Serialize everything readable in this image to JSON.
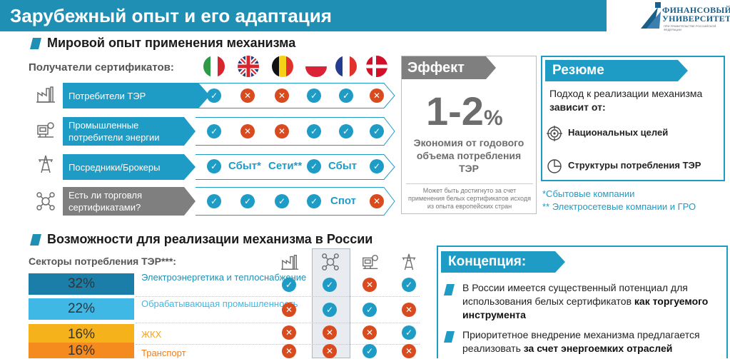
{
  "header": {
    "title": "Зарубежный опыт и его адаптация"
  },
  "logo": {
    "line1": "ФИНАНСОВЫЙ",
    "line2": "УНИВЕРСИТЕТ",
    "sub": "ПРИ ПРАВИТЕЛЬСТВЕ РОССИЙСКОЙ ФЕДЕРАЦИИ"
  },
  "world": {
    "heading": "Мировой опыт применения механизма",
    "recipients_label": "Получатели сертификатов:",
    "countries": [
      "italy-flag",
      "uk-flag",
      "belgium-flag",
      "poland-flag",
      "france-flag",
      "denmark-flag"
    ],
    "rows": [
      {
        "label": "Потребители ТЭР",
        "icon": "factory-icon",
        "cells": [
          "ok",
          "no",
          "no",
          "ok",
          "ok",
          "no"
        ]
      },
      {
        "label": "Промышленные потребители энергии",
        "icon": "industry-icon",
        "cells": [
          "ok",
          "no",
          "no",
          "ok",
          "ok",
          "ok"
        ]
      },
      {
        "label": "Посредники/Брокеры",
        "icon": "power-tower-icon",
        "cells": [
          "ok",
          "Сбыт*",
          "Сети**",
          "ok",
          "Сбыт",
          "ok"
        ]
      },
      {
        "label": "Есть ли торговля сертификатами?",
        "icon": "network-icon",
        "cells": [
          "ok",
          "ok",
          "ok",
          "ok",
          "Спот",
          "no"
        ]
      }
    ]
  },
  "effect": {
    "header": "Эффект",
    "big": "1-2",
    "pct": "%",
    "desc": "Экономия от годового объема потребления ТЭР",
    "note": "Может быть достигнуто за счет применения белых сертификатов исходя из опыта европейских стран"
  },
  "resume": {
    "header": "Резюме",
    "text_plain": "Подход к реализации механизма",
    "text_bold": "зависит от:",
    "items": [
      {
        "label": "Национальных целей",
        "icon": "target-icon"
      },
      {
        "label": "Структуры потребления ТЭР",
        "icon": "pie-chart-icon"
      }
    ]
  },
  "footnotes": [
    "*Сбытовые компании",
    "** Электросетевые компании и ГРО"
  ],
  "russia": {
    "heading": "Возможности для реализации механизма в России",
    "sectors_label": "Секторы потребления ТЭР***:",
    "col_icons": [
      "factory-icon",
      "network-icon",
      "industry-icon",
      "power-tower-icon"
    ],
    "sectors": [
      {
        "pct": "32%",
        "name": "Электроэнергетика и теплоснабжение",
        "color": "#1b7ea8",
        "text_color": "#1f8fb4",
        "cells": [
          "ok",
          "ok",
          "no",
          "ok"
        ]
      },
      {
        "pct": "22%",
        "name": "Обрабатывающая промышленность",
        "color": "#3fb8e6",
        "text_color": "#3fb8e6",
        "cells": [
          "no",
          "ok",
          "ok",
          "no"
        ]
      },
      {
        "pct": "16%",
        "name": "ЖКХ",
        "color": "#f6b21b",
        "text_color": "#f6a21b",
        "cells": [
          "no",
          "no",
          "no",
          "ok"
        ]
      },
      {
        "pct": "16%",
        "name": "Транспорт",
        "color": "#f58a1f",
        "text_color": "#f07e1b",
        "cells": [
          "no",
          "no",
          "ok",
          "no"
        ]
      }
    ]
  },
  "concept": {
    "header": "Концепция:",
    "item1_plain": "В России имеется существенный потенциал для использования белых сертификатов",
    "item1_bold": "как торгуемого инструмента",
    "item2_plain": "Приоритетное внедрение механизма предлагается реализовать",
    "item2_bold": "за счет энергоемких отраслей"
  },
  "colors": {
    "accent": "#1f8fb4",
    "ok": "#1f9cc6",
    "no": "#d94a1e",
    "gray": "#7f7f7f"
  }
}
